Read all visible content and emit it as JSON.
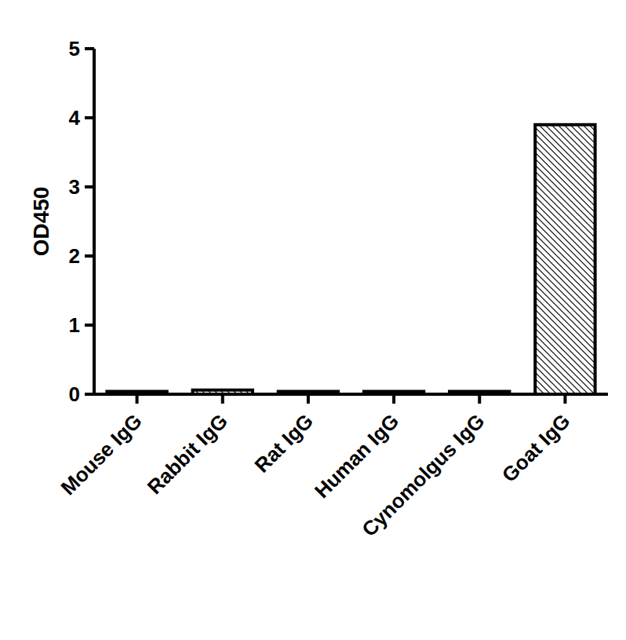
{
  "chart_data": {
    "type": "bar",
    "y_label": "OD450",
    "categories": [
      "Mouse IgG",
      "Rabbit IgG",
      "Rat IgG",
      "Human IgG",
      "Cynomolgus IgG",
      "Goat IgG"
    ],
    "values": [
      0.04,
      0.06,
      0.04,
      0.04,
      0.04,
      3.9
    ],
    "color": "#000000",
    "ylim": [
      0,
      5
    ],
    "yticks": [
      0,
      1,
      2,
      3,
      4,
      5
    ]
  }
}
